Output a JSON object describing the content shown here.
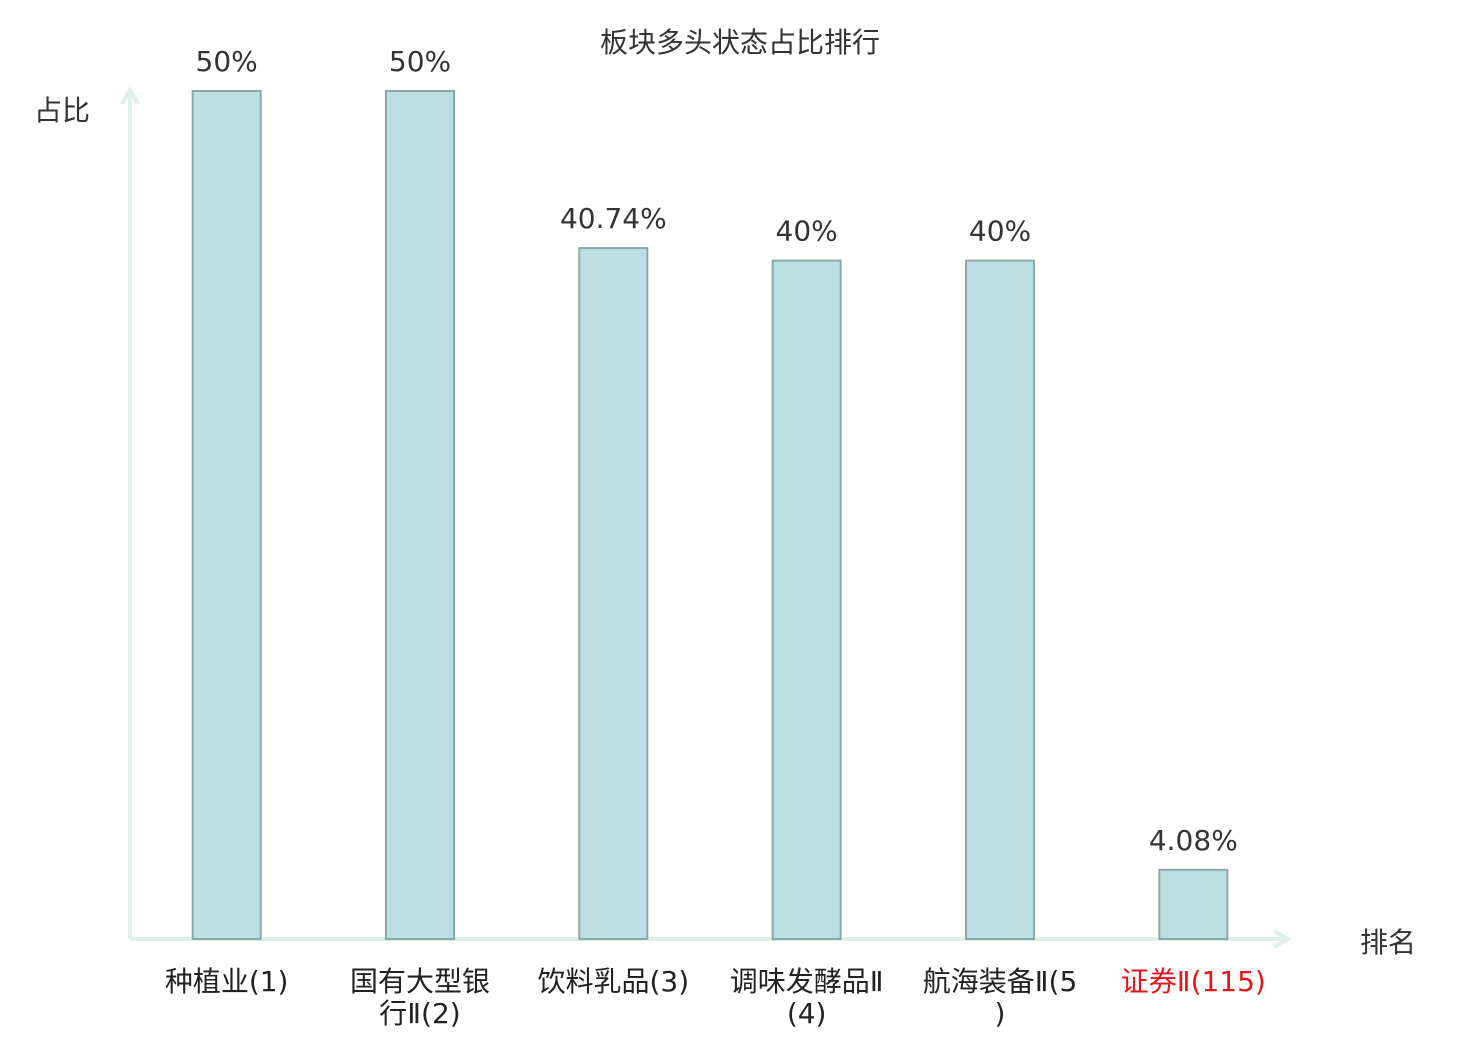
{
  "chart_data": {
    "type": "bar",
    "title": "板块多头状态占比排行",
    "y_label": "占比",
    "x_label": "排名",
    "categories": [
      "种植业(1)",
      "国有大型银行Ⅱ(2)",
      "饮料乳品(3)",
      "调味发酵品Ⅱ(4)",
      "航海装备Ⅱ(5)",
      "证券Ⅱ(115)"
    ],
    "category_colors": [
      "#222222",
      "#222222",
      "#222222",
      "#222222",
      "#222222",
      "#e8141b"
    ],
    "values": [
      50,
      50,
      40.74,
      40,
      40,
      4.08
    ],
    "value_labels": [
      "50%",
      "50%",
      "40.74%",
      "40%",
      "40%",
      "4.08%"
    ],
    "color": "#bce0e2",
    "edge_color": "#8aa8ab",
    "axis_color": "#dcf1ec",
    "ylim": [
      0,
      50
    ]
  }
}
